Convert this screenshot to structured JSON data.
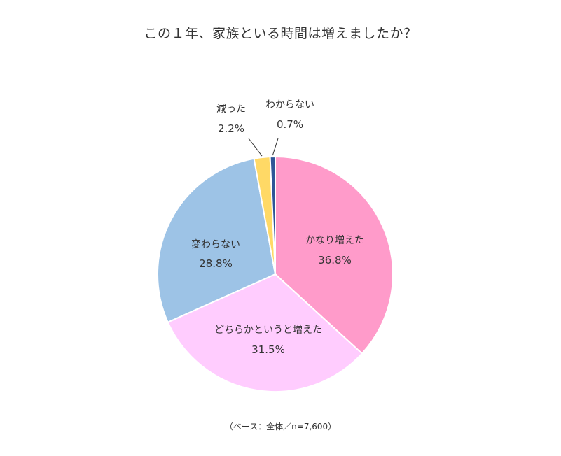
{
  "chart_data": {
    "type": "pie",
    "title": "この１年、家族といる時間は増えましたか？",
    "footnote": "（ベース：全体／n=7,600）",
    "slices": [
      {
        "label": "かなり増えた",
        "value": 36.8,
        "value_text": "36.8%",
        "color": "#FF9BCA"
      },
      {
        "label": "どちらかというと増えた",
        "value": 31.5,
        "value_text": "31.5%",
        "color": "#FFCCFE"
      },
      {
        "label": "変わらない",
        "value": 28.8,
        "value_text": "28.8%",
        "color": "#9DC3E6"
      },
      {
        "label": "減った",
        "value": 2.2,
        "value_text": "2.2%",
        "color": "#FFD966"
      },
      {
        "label": "わからない",
        "value": 0.7,
        "value_text": "0.7%",
        "color": "#2F5597"
      }
    ],
    "start": "top",
    "direction": "clockwise"
  }
}
